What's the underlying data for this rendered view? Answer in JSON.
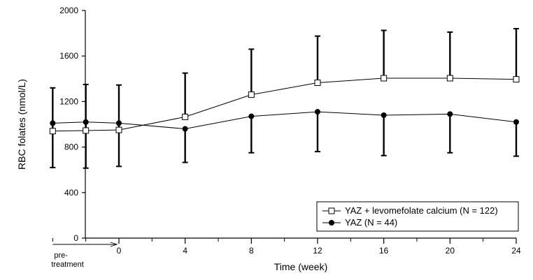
{
  "chart_data": {
    "type": "line",
    "xlabel": "Time (week)",
    "ylabel": "RBC folates (nmol/L)",
    "ylim": [
      0,
      2000
    ],
    "y_ticks": [
      0,
      400,
      800,
      1200,
      1600,
      2000
    ],
    "x_ticks": [
      0,
      4,
      8,
      12,
      16,
      20,
      24
    ],
    "pretreatment_label": [
      "pre-",
      "treatment"
    ],
    "grid": false,
    "legend_position": "bottom-right",
    "series": [
      {
        "name": "YAZ + levomefolate calcium (N = 122)",
        "marker": "open-square",
        "x": [
          -4,
          -2,
          0,
          4,
          8,
          12,
          16,
          20,
          24
        ],
        "y": [
          940,
          945,
          950,
          1065,
          1260,
          1365,
          1405,
          1405,
          1395
        ],
        "error_upper": [
          1320,
          1350,
          1345,
          1450,
          1660,
          1775,
          1825,
          1810,
          1840
        ]
      },
      {
        "name": "YAZ (N = 44)",
        "marker": "filled-circle",
        "x": [
          -4,
          -2,
          0,
          4,
          8,
          12,
          16,
          20,
          24
        ],
        "y": [
          1010,
          1020,
          1010,
          960,
          1070,
          1110,
          1080,
          1090,
          1020
        ],
        "error_lower": [
          620,
          615,
          630,
          665,
          750,
          760,
          725,
          750,
          720
        ]
      }
    ]
  }
}
